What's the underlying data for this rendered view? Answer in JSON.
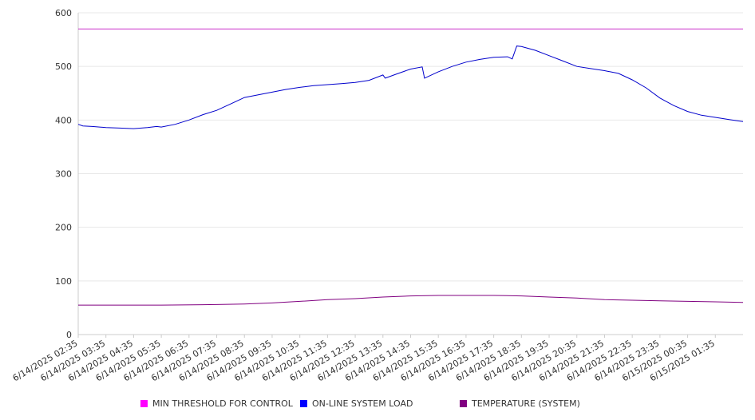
{
  "chart_data": {
    "type": "line",
    "title": "",
    "xlabel": "",
    "ylabel": "",
    "ylim": [
      0,
      600
    ],
    "y_ticks": [
      "0",
      "100",
      "200",
      "300",
      "400",
      "500",
      "600"
    ],
    "grid": "horizontal",
    "legend_placement": "bottom",
    "x_tick_labels": [
      "6/14/2025 02:35",
      "6/14/2025 03:35",
      "6/14/2025 04:35",
      "6/14/2025 05:35",
      "6/14/2025 06:35",
      "6/14/2025 07:35",
      "6/14/2025 08:35",
      "6/14/2025 09:35",
      "6/14/2025 10:35",
      "6/14/2025 11:35",
      "6/14/2025 12:35",
      "6/14/2025 13:35",
      "6/14/2025 14:35",
      "6/14/2025 15:35",
      "6/14/2025 16:35",
      "6/14/2025 17:35",
      "6/14/2025 18:35",
      "6/14/2025 19:35",
      "6/14/2025 20:35",
      "6/14/2025 21:35",
      "6/14/2025 22:35",
      "6/14/2025 23:35",
      "6/15/2025 00:35",
      "6/15/2025 01:35"
    ],
    "x_range": [
      "6/14/2025 02:35",
      "6/15/2025 02:35"
    ],
    "series": [
      {
        "name": "MIN THRESHOLD FOR CONTROL",
        "color": "#cc33cc",
        "swatch_color": "#ff00ff",
        "x": [
          "6/14/2025 02:35",
          "6/15/2025 02:35"
        ],
        "values": [
          570,
          570
        ]
      },
      {
        "name": "ON-LINE SYSTEM LOAD",
        "color": "#0000cc",
        "swatch_color": "#0000ff",
        "x": [
          "6/14/2025 02:35",
          "6/14/2025 02:45",
          "6/14/2025 03:05",
          "6/14/2025 03:35",
          "6/14/2025 04:05",
          "6/14/2025 04:35",
          "6/14/2025 05:05",
          "6/14/2025 05:25",
          "6/14/2025 05:35",
          "6/14/2025 06:05",
          "6/14/2025 06:35",
          "6/14/2025 07:05",
          "6/14/2025 07:35",
          "6/14/2025 08:05",
          "6/14/2025 08:35",
          "6/14/2025 09:05",
          "6/14/2025 09:35",
          "6/14/2025 10:05",
          "6/14/2025 10:35",
          "6/14/2025 11:05",
          "6/14/2025 11:35",
          "6/14/2025 12:05",
          "6/14/2025 12:35",
          "6/14/2025 13:05",
          "6/14/2025 13:35",
          "6/14/2025 13:40",
          "6/14/2025 14:05",
          "6/14/2025 14:35",
          "6/14/2025 15:00",
          "6/14/2025 15:05",
          "6/14/2025 15:35",
          "6/14/2025 16:05",
          "6/14/2025 16:35",
          "6/14/2025 17:05",
          "6/14/2025 17:35",
          "6/14/2025 18:05",
          "6/14/2025 18:15",
          "6/14/2025 18:25",
          "6/14/2025 18:35",
          "6/14/2025 19:05",
          "6/14/2025 19:35",
          "6/14/2025 20:05",
          "6/14/2025 20:35",
          "6/14/2025 21:05",
          "6/14/2025 21:35",
          "6/14/2025 22:05",
          "6/14/2025 22:35",
          "6/14/2025 23:05",
          "6/14/2025 23:35",
          "6/15/2025 00:05",
          "6/15/2025 00:35",
          "6/15/2025 01:05",
          "6/15/2025 01:35",
          "6/15/2025 02:05",
          "6/15/2025 02:35"
        ],
        "values": [
          392,
          389,
          388,
          386,
          385,
          384,
          386,
          388,
          387,
          392,
          400,
          410,
          418,
          430,
          442,
          447,
          452,
          457,
          461,
          464,
          466,
          468,
          470,
          474,
          484,
          478,
          486,
          495,
          499,
          478,
          490,
          500,
          508,
          513,
          517,
          518,
          514,
          538,
          537,
          530,
          520,
          510,
          500,
          496,
          492,
          487,
          475,
          460,
          441,
          427,
          416,
          409,
          405,
          401,
          397
        ]
      },
      {
        "name": "TEMPERATURE (SYSTEM)",
        "color": "#800080",
        "swatch_color": "#800080",
        "x": [
          "6/14/2025 02:35",
          "6/14/2025 05:35",
          "6/14/2025 07:35",
          "6/14/2025 08:35",
          "6/14/2025 09:35",
          "6/14/2025 10:35",
          "6/14/2025 11:35",
          "6/14/2025 12:35",
          "6/14/2025 13:35",
          "6/14/2025 14:35",
          "6/14/2025 15:35",
          "6/14/2025 16:35",
          "6/14/2025 17:35",
          "6/14/2025 18:35",
          "6/14/2025 19:35",
          "6/14/2025 20:35",
          "6/14/2025 21:35",
          "6/14/2025 22:35",
          "6/14/2025 23:35",
          "6/15/2025 00:35",
          "6/15/2025 01:35",
          "6/15/2025 02:35"
        ],
        "values": [
          55,
          55,
          56,
          57,
          59,
          62,
          65,
          67,
          70,
          72,
          73,
          73,
          73,
          72,
          70,
          68,
          65,
          64,
          63,
          62,
          61,
          60
        ]
      }
    ]
  }
}
